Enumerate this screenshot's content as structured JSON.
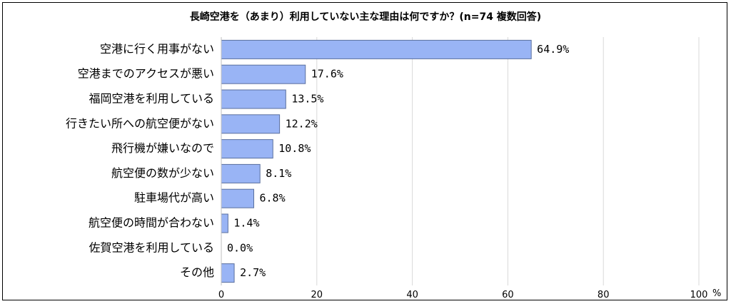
{
  "chart_data": {
    "type": "bar",
    "orientation": "horizontal",
    "title": "長崎空港を（あまり）利用していない主な理由は何ですか？(n=74 複数回答)",
    "categories": [
      "空港に行く用事がない",
      "空港までのアクセスが悪い",
      "福岡空港を利用している",
      "行きたい所への航空便がない",
      "飛行機が嫌いなので",
      "航空便の数が少ない",
      "駐車場代が高い",
      "航空便の時間が合わない",
      "佐賀空港を利用している",
      "その他"
    ],
    "values": [
      64.9,
      17.6,
      13.5,
      12.2,
      10.8,
      8.1,
      6.8,
      1.4,
      0.0,
      2.7
    ],
    "value_labels": [
      "64.9%",
      "17.6%",
      "13.5%",
      "12.2%",
      "10.8%",
      "8.1%",
      "6.8%",
      "1.4%",
      "0.0%",
      "2.7%"
    ],
    "xlim": [
      0,
      100
    ],
    "xticks": [
      0,
      20,
      40,
      60,
      80,
      100
    ],
    "xunit": "%",
    "grid": "vertical",
    "bar_color": "#99b4f5",
    "bar_edge_color": "#5a6f9e",
    "grid_color": "#d9d9d9"
  }
}
